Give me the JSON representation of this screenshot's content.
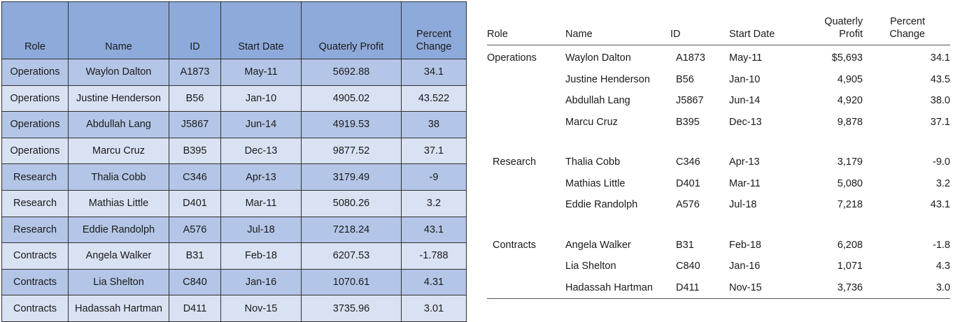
{
  "left_table": {
    "headers": {
      "role": "Role",
      "name": "Name",
      "id": "ID",
      "start_date": "Start Date",
      "profit": "Quaterly Profit",
      "change_line1": "Percent",
      "change_line2": "Change"
    },
    "rows": [
      {
        "role": "Operations",
        "name": "Waylon Dalton",
        "id": "A1873",
        "start": "May-11",
        "profit": "5692.88",
        "change": "34.1"
      },
      {
        "role": "Operations",
        "name": "Justine Henderson",
        "id": "B56",
        "start": "Jan-10",
        "profit": "4905.02",
        "change": "43.522"
      },
      {
        "role": "Operations",
        "name": "Abdullah Lang",
        "id": "J5867",
        "start": "Jun-14",
        "profit": "4919.53",
        "change": "38"
      },
      {
        "role": "Operations",
        "name": "Marcu Cruz",
        "id": "B395",
        "start": "Dec-13",
        "profit": "9877.52",
        "change": "37.1"
      },
      {
        "role": "Research",
        "name": "Thalia Cobb",
        "id": "C346",
        "start": "Apr-13",
        "profit": "3179.49",
        "change": "-9"
      },
      {
        "role": "Research",
        "name": "Mathias Little",
        "id": "D401",
        "start": "Mar-11",
        "profit": "5080.26",
        "change": "3.2"
      },
      {
        "role": "Research",
        "name": "Eddie Randolph",
        "id": "A576",
        "start": "Jul-18",
        "profit": "7218.24",
        "change": "43.1"
      },
      {
        "role": "Contracts",
        "name": "Angela Walker",
        "id": "B31",
        "start": "Feb-18",
        "profit": "6207.53",
        "change": "-1.788"
      },
      {
        "role": "Contracts",
        "name": "Lia Shelton",
        "id": "C840",
        "start": "Jan-16",
        "profit": "1070.61",
        "change": "4.31"
      },
      {
        "role": "Contracts",
        "name": "Hadassah Hartman",
        "id": "D411",
        "start": "Nov-15",
        "profit": "3735.96",
        "change": "3.01"
      }
    ]
  },
  "right_table": {
    "headers": {
      "role": "Role",
      "name": "Name",
      "id": "ID",
      "start_date": "Start Date",
      "profit_line1": "Quaterly",
      "profit_line2": "Profit",
      "change_line1": "Percent",
      "change_line2": "Change"
    },
    "groups": [
      {
        "role": "Operations",
        "rows": [
          {
            "name": "Waylon Dalton",
            "id": "A1873",
            "start": "May-11",
            "profit": "$5,693",
            "change": "34.1"
          },
          {
            "name": "Justine Henderson",
            "id": "B56",
            "start": "Jan-10",
            "profit": "4,905",
            "change": "43.5"
          },
          {
            "name": "Abdullah Lang",
            "id": "J5867",
            "start": "Jun-14",
            "profit": "4,920",
            "change": "38.0"
          },
          {
            "name": "Marcu Cruz",
            "id": "B395",
            "start": "Dec-13",
            "profit": "9,878",
            "change": "37.1"
          }
        ]
      },
      {
        "role": "Research",
        "rows": [
          {
            "name": "Thalia Cobb",
            "id": "C346",
            "start": "Apr-13",
            "profit": "3,179",
            "change": "-9.0"
          },
          {
            "name": "Mathias Little",
            "id": "D401",
            "start": "Mar-11",
            "profit": "5,080",
            "change": "3.2"
          },
          {
            "name": "Eddie Randolph",
            "id": "A576",
            "start": "Jul-18",
            "profit": "7,218",
            "change": "43.1"
          }
        ]
      },
      {
        "role": "Contracts",
        "rows": [
          {
            "name": "Angela Walker",
            "id": "B31",
            "start": "Feb-18",
            "profit": "6,208",
            "change": "-1.8"
          },
          {
            "name": "Lia Shelton",
            "id": "C840",
            "start": "Jan-16",
            "profit": "1,071",
            "change": "4.3"
          },
          {
            "name": "Hadassah Hartman",
            "id": "D411",
            "start": "Nov-15",
            "profit": "3,736",
            "change": "3.0"
          }
        ]
      }
    ]
  },
  "colors": {
    "header_fill": "#8eaadb",
    "band_dark": "#b4c6e7",
    "band_light": "#d9e2f3",
    "border": "#2f2f2f"
  }
}
